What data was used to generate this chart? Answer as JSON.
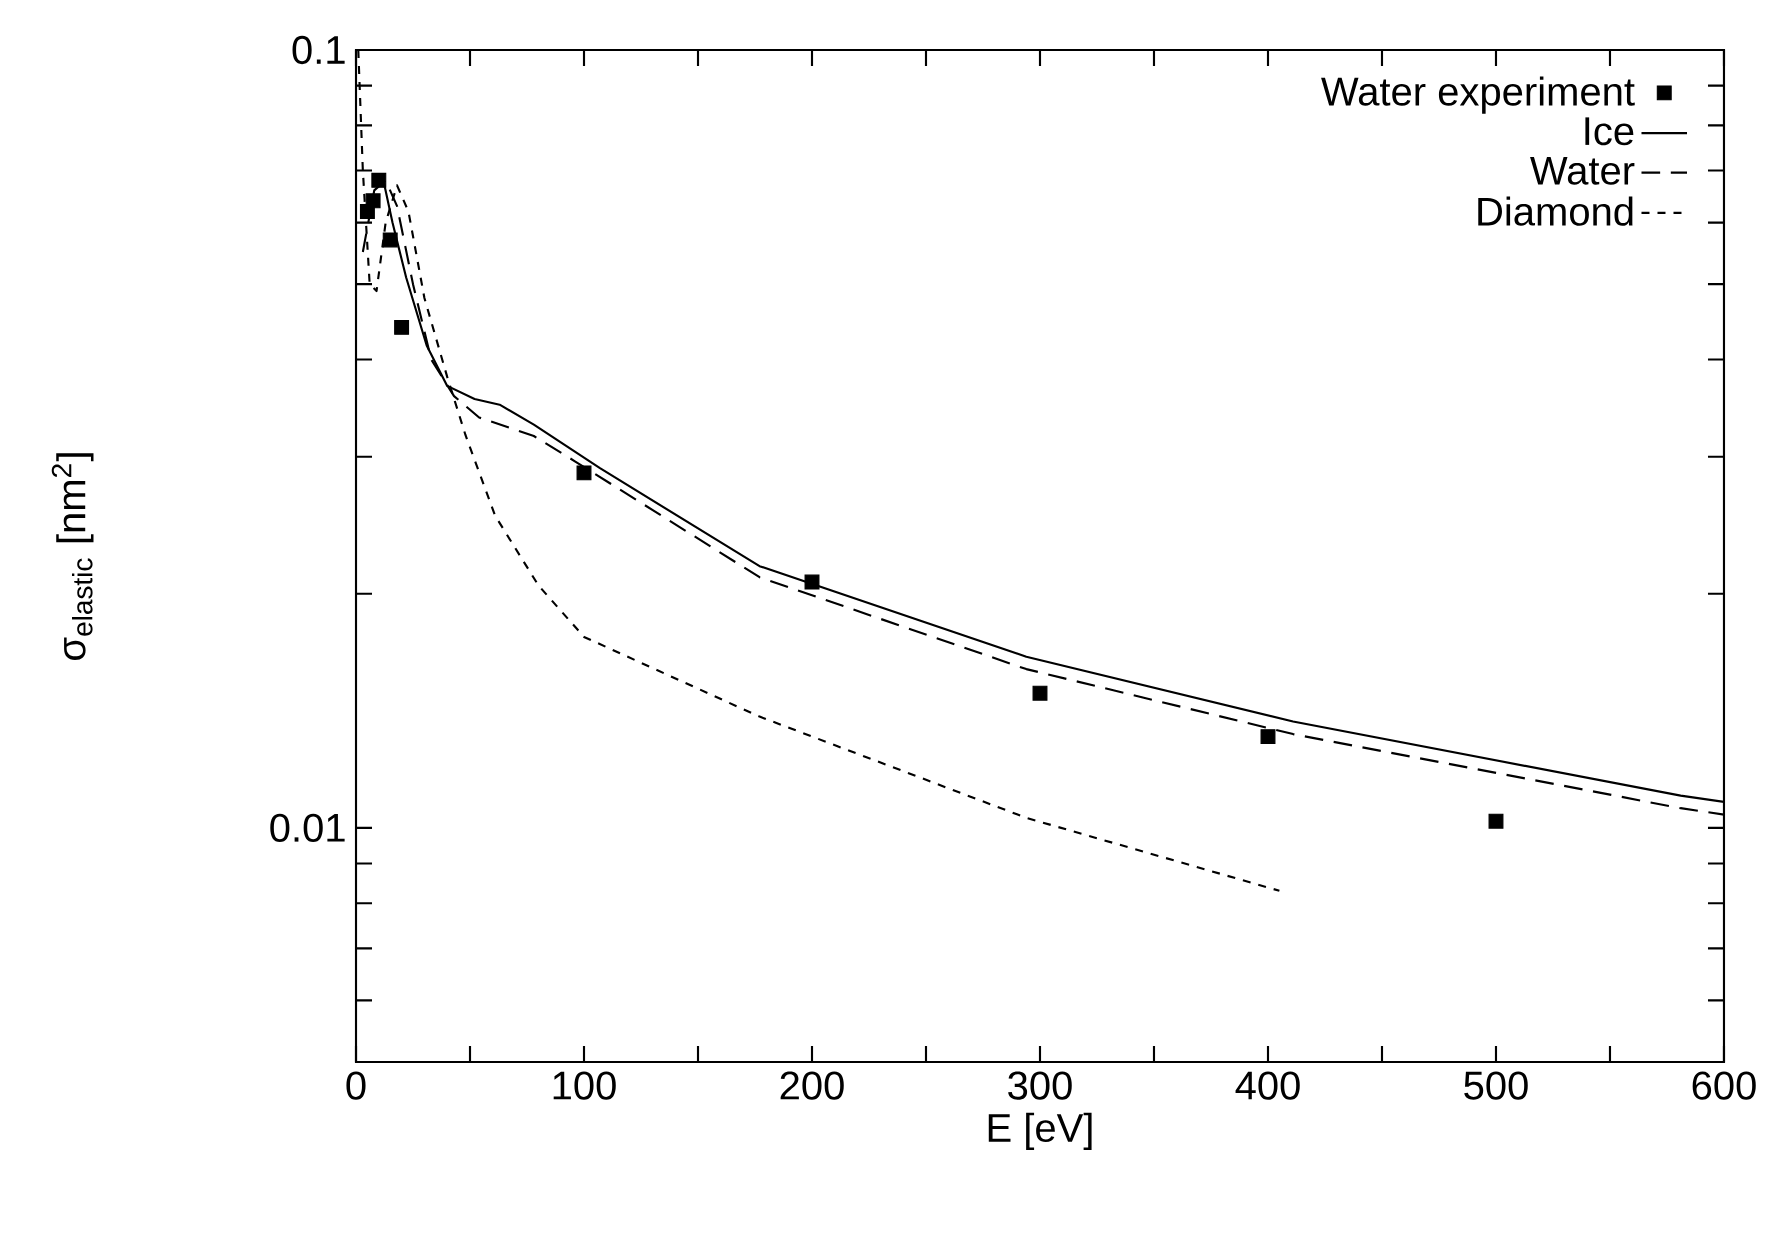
{
  "chart_data": {
    "type": "line",
    "xlabel": "E [eV]",
    "ylabel": "σ$_{elastic}$ [nm$^{2}$]",
    "log": "y",
    "xlim": [
      0,
      600
    ],
    "ylim": [
      0.005,
      0.1
    ],
    "xticks": [
      0,
      {
        "value": 50,
        "label": null
      },
      100,
      {
        "value": 150,
        "label": null
      },
      200,
      {
        "value": 250,
        "label": null
      },
      300,
      {
        "value": 350,
        "label": null
      },
      400,
      {
        "value": 450,
        "label": null
      },
      500,
      {
        "value": 550,
        "label": null
      },
      600
    ],
    "yticks": [
      {
        "value": 0.005,
        "label": null
      },
      {
        "value": 0.006,
        "label": null
      },
      {
        "value": 0.007,
        "label": null
      },
      {
        "value": 0.008,
        "label": null
      },
      {
        "value": 0.009,
        "label": null
      },
      0.01,
      {
        "value": 0.02,
        "label": null
      },
      {
        "value": 0.03,
        "label": null
      },
      {
        "value": 0.04,
        "label": null
      },
      {
        "value": 0.05,
        "label": null
      },
      {
        "value": 0.06,
        "label": null
      },
      {
        "value": 0.07,
        "label": null
      },
      {
        "value": 0.08,
        "label": null
      },
      {
        "value": 0.09,
        "label": null
      },
      0.1
    ],
    "legend": "top right",
    "grid": false,
    "series": [
      {
        "name": "Water experiment",
        "type": "scatter",
        "marker": "square",
        "color": "#000000",
        "x": [
          5,
          7.5,
          10,
          15,
          20,
          100,
          200,
          300,
          400,
          500
        ],
        "values": [
          0.062,
          0.064,
          0.068,
          0.057,
          0.044,
          0.0286,
          0.0207,
          0.0149,
          0.0131,
          0.0102
        ]
      },
      {
        "name": "Ice",
        "line_style": "solid",
        "color": "#000000",
        "x": [
          8,
          12,
          16,
          22,
          31,
          40,
          52,
          63,
          78,
          92,
          107,
          177,
          294,
          411,
          581,
          600
        ],
        "values": [
          0.068,
          0.068,
          0.06,
          0.051,
          0.0417,
          0.037,
          0.0356,
          0.035,
          0.033,
          0.031,
          0.029,
          0.0217,
          0.0166,
          0.0137,
          0.011,
          0.0108
        ]
      },
      {
        "name": "Water",
        "line_style": "dashed",
        "color": "#000000",
        "x": [
          3,
          8,
          13,
          18,
          25,
          33,
          43,
          54,
          78,
          96,
          177,
          294,
          411,
          581,
          600
        ],
        "values": [
          0.055,
          0.066,
          0.068,
          0.063,
          0.05,
          0.04,
          0.0359,
          0.0337,
          0.0319,
          0.0296,
          0.021,
          0.016,
          0.0132,
          0.0106,
          0.0104
        ]
      },
      {
        "name": "Diamond",
        "line_style": "dotted",
        "color": "#000000",
        "x": [
          1,
          3,
          6,
          9,
          13,
          18,
          23,
          30,
          40,
          48,
          61,
          80,
          100,
          177,
          294,
          405
        ],
        "values": [
          0.1,
          0.07,
          0.05,
          0.049,
          0.06,
          0.067,
          0.062,
          0.048,
          0.038,
          0.032,
          0.0252,
          0.0205,
          0.0176,
          0.0139,
          0.0103,
          0.0083
        ]
      }
    ]
  }
}
